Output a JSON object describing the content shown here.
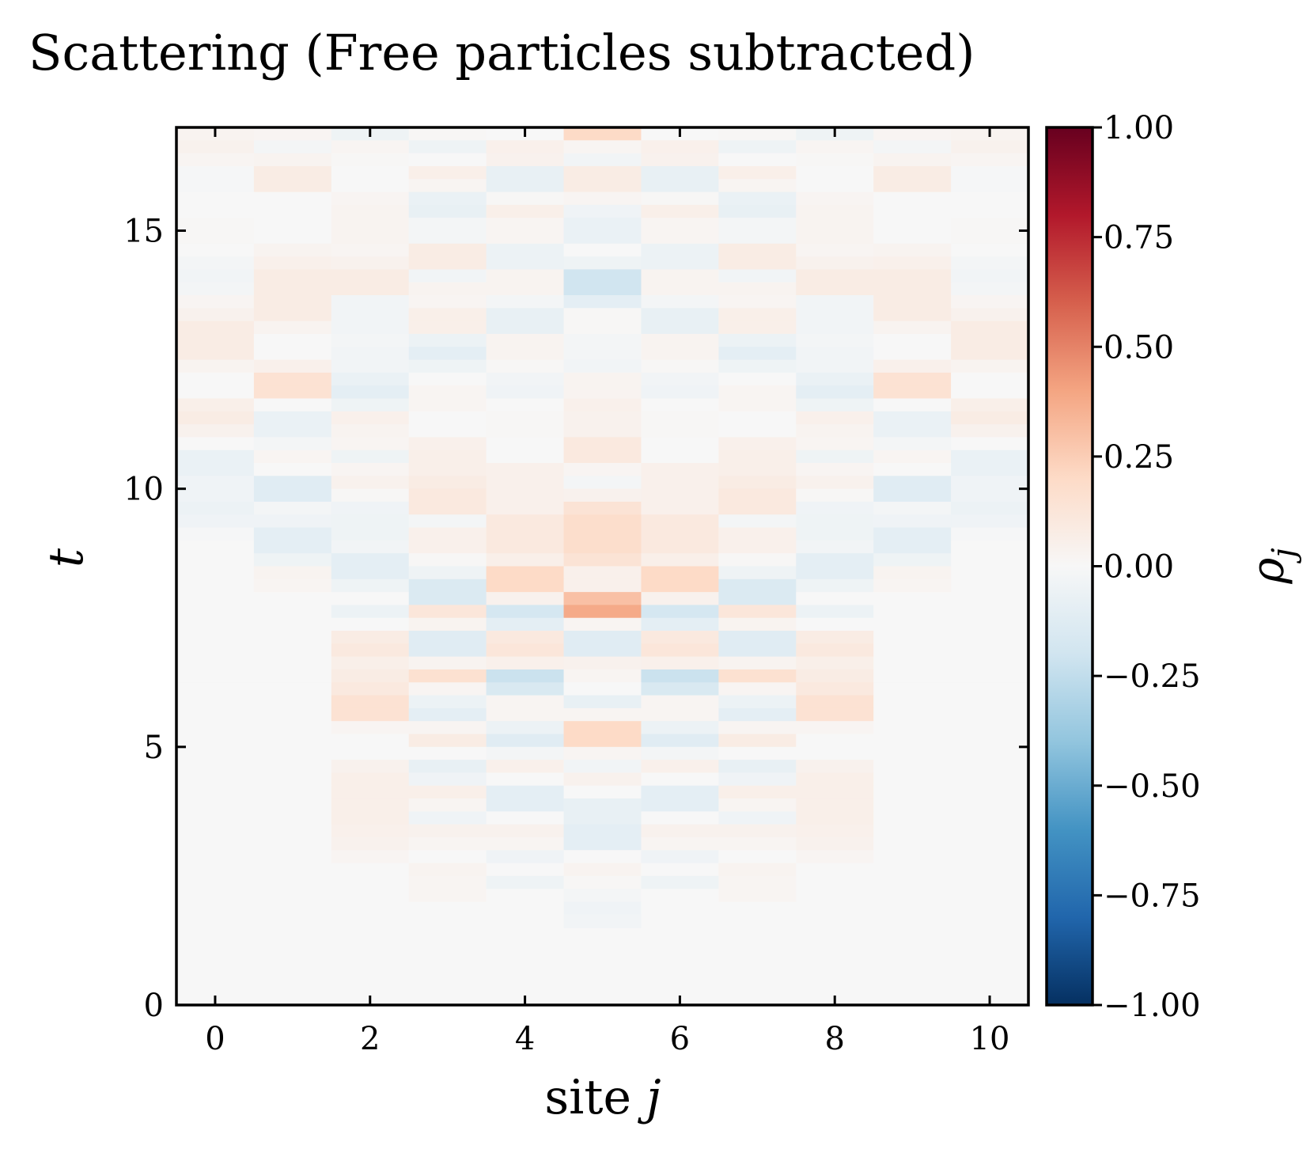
{
  "chart_data": {
    "type": "heatmap",
    "title": "Scattering (Free particles subtracted)",
    "xlabel": "site j",
    "xlabel_parts": {
      "prefix": "site ",
      "var": "j"
    },
    "ylabel": "t",
    "xlim": [
      -0.5,
      10.5
    ],
    "ylim": [
      0,
      17
    ],
    "x_ticks": [
      0,
      2,
      4,
      6,
      8,
      10
    ],
    "x_tick_labels": [
      "0",
      "2",
      "4",
      "6",
      "8",
      "10"
    ],
    "y_ticks": [
      0,
      5,
      10,
      15
    ],
    "y_tick_labels": [
      "0",
      "5",
      "10",
      "15"
    ],
    "colorbar": {
      "label": "ρj",
      "label_parts": {
        "base": "ρ",
        "sub": "j"
      },
      "vmin": -1.0,
      "vmax": 1.0,
      "ticks": [
        1.0,
        0.75,
        0.5,
        0.25,
        0.0,
        -0.25,
        -0.5,
        -0.75,
        -1.0
      ],
      "tick_labels": [
        "1.00",
        "0.75",
        "0.50",
        "0.25",
        "0.00",
        "−0.25",
        "−0.50",
        "−0.75",
        "−1.00"
      ],
      "colormap": "RdBu_r",
      "colors": [
        "#053061",
        "#2166ac",
        "#4393c3",
        "#92c5de",
        "#d1e5f0",
        "#f7f7f7",
        "#fddbc7",
        "#f4a582",
        "#d6604d",
        "#b2182b",
        "#67001f"
      ]
    },
    "sites": [
      0,
      1,
      2,
      3,
      4,
      5,
      6,
      7,
      8,
      9,
      10
    ],
    "t_step": 0.25,
    "bands": [
      {
        "t": [
          16.75,
          17.0
        ],
        "values": [
          0.03,
          0.02,
          -0.05,
          0.01,
          0.0,
          0.2,
          0.0,
          0.01,
          -0.05,
          0.02,
          0.03
        ]
      },
      {
        "t": [
          16.5,
          16.75
        ],
        "values": [
          0.04,
          -0.02,
          0.02,
          -0.05,
          0.05,
          0.02,
          0.05,
          -0.05,
          0.02,
          -0.02,
          0.04
        ]
      },
      {
        "t": [
          16.25,
          16.5
        ],
        "values": [
          0.02,
          0.03,
          0.01,
          0.0,
          0.04,
          -0.03,
          0.04,
          0.0,
          0.01,
          0.03,
          0.02
        ]
      },
      {
        "t": [
          16.0,
          16.25
        ],
        "values": [
          -0.01,
          0.08,
          0.0,
          0.06,
          -0.08,
          0.08,
          -0.08,
          0.06,
          0.0,
          0.08,
          -0.01
        ]
      },
      {
        "t": [
          15.75,
          16.0
        ],
        "values": [
          -0.01,
          0.08,
          0.0,
          0.02,
          -0.08,
          0.08,
          -0.08,
          0.02,
          0.0,
          0.08,
          -0.01
        ]
      },
      {
        "t": [
          15.5,
          15.75
        ],
        "values": [
          0.0,
          0.0,
          0.02,
          -0.07,
          0.01,
          0.02,
          0.01,
          -0.07,
          0.02,
          0.0,
          0.0
        ]
      },
      {
        "t": [
          15.25,
          15.5
        ],
        "values": [
          0.0,
          0.0,
          0.03,
          -0.08,
          0.06,
          -0.04,
          0.06,
          -0.08,
          0.03,
          0.0,
          0.0
        ]
      },
      {
        "t": [
          15.0,
          15.25
        ],
        "values": [
          0.01,
          0.0,
          0.03,
          -0.02,
          0.02,
          -0.07,
          0.02,
          -0.02,
          0.03,
          0.0,
          0.01
        ]
      },
      {
        "t": [
          14.75,
          15.0
        ],
        "values": [
          0.01,
          0.0,
          0.03,
          -0.02,
          0.02,
          -0.07,
          0.02,
          -0.02,
          0.03,
          0.0,
          0.01
        ]
      },
      {
        "t": [
          14.5,
          14.75
        ],
        "values": [
          0.0,
          0.03,
          0.02,
          0.08,
          -0.06,
          0.0,
          -0.06,
          0.08,
          0.02,
          0.03,
          0.0
        ]
      },
      {
        "t": [
          14.25,
          14.5
        ],
        "values": [
          -0.02,
          0.05,
          0.04,
          0.08,
          -0.06,
          -0.05,
          -0.06,
          0.08,
          0.04,
          0.05,
          -0.02
        ]
      },
      {
        "t": [
          14.0,
          14.25
        ],
        "values": [
          -0.03,
          0.08,
          0.08,
          -0.03,
          0.03,
          -0.2,
          0.03,
          -0.03,
          0.08,
          0.08,
          -0.03
        ]
      },
      {
        "t": [
          13.75,
          14.0
        ],
        "values": [
          -0.02,
          0.08,
          0.08,
          0.03,
          0.03,
          -0.2,
          0.03,
          0.03,
          0.08,
          0.08,
          -0.02
        ]
      },
      {
        "t": [
          13.5,
          13.75
        ],
        "values": [
          0.02,
          0.08,
          -0.03,
          0.02,
          -0.02,
          -0.1,
          -0.02,
          0.02,
          -0.03,
          0.08,
          0.02
        ]
      },
      {
        "t": [
          13.25,
          13.5
        ],
        "values": [
          0.04,
          0.08,
          -0.03,
          0.06,
          -0.08,
          0.01,
          -0.08,
          0.06,
          -0.03,
          0.08,
          0.04
        ]
      },
      {
        "t": [
          13.0,
          13.25
        ],
        "values": [
          0.08,
          0.03,
          -0.03,
          0.06,
          -0.08,
          0.01,
          -0.08,
          0.06,
          -0.03,
          0.03,
          0.08
        ]
      },
      {
        "t": [
          12.75,
          13.0
        ],
        "values": [
          0.08,
          0.0,
          -0.02,
          -0.06,
          0.03,
          -0.02,
          0.03,
          -0.06,
          -0.02,
          0.0,
          0.08
        ]
      },
      {
        "t": [
          12.5,
          12.75
        ],
        "values": [
          0.08,
          0.0,
          -0.03,
          -0.1,
          0.03,
          -0.02,
          0.03,
          -0.1,
          -0.03,
          0.0,
          0.08
        ]
      },
      {
        "t": [
          12.25,
          12.5
        ],
        "values": [
          0.03,
          0.05,
          -0.03,
          -0.05,
          0.01,
          -0.03,
          0.01,
          -0.05,
          -0.03,
          0.05,
          0.03
        ]
      },
      {
        "t": [
          12.0,
          12.25
        ],
        "values": [
          0.0,
          0.15,
          -0.07,
          0.0,
          -0.03,
          0.03,
          -0.03,
          0.0,
          -0.07,
          0.15,
          0.0
        ]
      },
      {
        "t": [
          11.75,
          12.0
        ],
        "values": [
          0.0,
          0.15,
          -0.1,
          0.02,
          -0.04,
          0.03,
          -0.04,
          0.02,
          -0.1,
          0.15,
          0.0
        ]
      },
      {
        "t": [
          11.5,
          11.75
        ],
        "values": [
          0.06,
          0.0,
          -0.05,
          0.02,
          0.0,
          0.05,
          0.0,
          0.02,
          -0.05,
          0.0,
          0.06
        ]
      },
      {
        "t": [
          11.25,
          11.5
        ],
        "values": [
          0.08,
          -0.07,
          0.05,
          0.0,
          0.01,
          0.04,
          0.01,
          0.0,
          0.05,
          -0.07,
          0.08
        ]
      },
      {
        "t": [
          11.0,
          11.25
        ],
        "values": [
          0.04,
          -0.07,
          0.03,
          0.0,
          0.01,
          0.04,
          0.01,
          0.0,
          0.03,
          -0.07,
          0.04
        ]
      },
      {
        "t": [
          10.75,
          11.0
        ],
        "values": [
          0.0,
          -0.02,
          0.02,
          0.05,
          0.0,
          0.1,
          0.0,
          0.05,
          0.02,
          -0.02,
          0.0
        ]
      },
      {
        "t": [
          10.5,
          10.75
        ],
        "values": [
          -0.07,
          0.02,
          -0.05,
          0.06,
          0.0,
          0.1,
          0.0,
          0.06,
          -0.05,
          0.02,
          -0.07
        ]
      },
      {
        "t": [
          10.25,
          10.5
        ],
        "values": [
          -0.07,
          0.0,
          0.02,
          0.06,
          0.05,
          0.02,
          0.05,
          0.06,
          0.02,
          0.0,
          -0.07
        ]
      },
      {
        "t": [
          10.0,
          10.25
        ],
        "values": [
          -0.04,
          -0.12,
          0.04,
          0.08,
          0.05,
          -0.02,
          0.05,
          0.08,
          0.04,
          -0.12,
          -0.04
        ]
      },
      {
        "t": [
          9.75,
          10.0
        ],
        "values": [
          -0.04,
          -0.12,
          0.01,
          0.1,
          0.05,
          0.04,
          0.05,
          0.1,
          0.01,
          -0.12,
          -0.04
        ]
      },
      {
        "t": [
          9.5,
          9.75
        ],
        "values": [
          -0.06,
          -0.02,
          -0.04,
          0.1,
          0.05,
          0.14,
          0.05,
          0.1,
          -0.04,
          -0.02,
          -0.06
        ]
      },
      {
        "t": [
          9.25,
          9.5
        ],
        "values": [
          -0.04,
          -0.04,
          -0.05,
          -0.02,
          0.1,
          0.18,
          0.1,
          -0.02,
          -0.05,
          -0.04,
          -0.04
        ]
      },
      {
        "t": [
          9.0,
          9.25
        ],
        "values": [
          -0.01,
          -0.1,
          -0.05,
          0.05,
          0.1,
          0.18,
          0.1,
          0.05,
          -0.05,
          -0.1,
          -0.01
        ]
      },
      {
        "t": [
          8.75,
          9.0
        ],
        "values": [
          0.0,
          -0.1,
          -0.03,
          0.05,
          0.1,
          0.18,
          0.1,
          0.05,
          -0.03,
          -0.1,
          0.0
        ]
      },
      {
        "t": [
          8.5,
          8.75
        ],
        "values": [
          0.0,
          -0.05,
          -0.1,
          0.01,
          0.06,
          0.14,
          0.06,
          0.01,
          -0.1,
          -0.05,
          0.0
        ]
      },
      {
        "t": [
          8.25,
          8.5
        ],
        "values": [
          0.0,
          0.03,
          -0.1,
          -0.05,
          0.2,
          0.05,
          0.2,
          -0.05,
          -0.1,
          0.03,
          0.0
        ]
      },
      {
        "t": [
          8.0,
          8.25
        ],
        "values": [
          0.0,
          0.02,
          -0.05,
          -0.15,
          0.2,
          0.05,
          0.2,
          -0.15,
          -0.05,
          0.02,
          0.0
        ]
      },
      {
        "t": [
          7.75,
          8.0
        ],
        "values": [
          0.0,
          0.0,
          0.0,
          -0.15,
          0.04,
          0.3,
          0.04,
          -0.15,
          0.0,
          0.0,
          0.0
        ]
      },
      {
        "t": [
          7.5,
          7.75
        ],
        "values": [
          0.0,
          0.0,
          -0.06,
          0.12,
          -0.18,
          0.38,
          -0.18,
          0.12,
          -0.06,
          0.0,
          0.0
        ]
      },
      {
        "t": [
          7.25,
          7.5
        ],
        "values": [
          0.0,
          0.0,
          0.0,
          0.03,
          -0.1,
          0.02,
          -0.1,
          0.03,
          0.0,
          0.0,
          0.0
        ]
      },
      {
        "t": [
          7.0,
          7.25
        ],
        "values": [
          0.0,
          0.0,
          0.08,
          -0.12,
          0.1,
          -0.12,
          0.1,
          -0.12,
          0.08,
          0.0,
          0.0
        ]
      },
      {
        "t": [
          6.75,
          7.0
        ],
        "values": [
          0.0,
          0.0,
          0.1,
          -0.12,
          0.12,
          -0.12,
          0.12,
          -0.12,
          0.1,
          0.0,
          0.0
        ]
      },
      {
        "t": [
          6.5,
          6.75
        ],
        "values": [
          0.0,
          0.0,
          0.06,
          0.03,
          0.05,
          0.04,
          0.05,
          0.03,
          0.06,
          0.0,
          0.0
        ]
      },
      {
        "t": [
          6.25,
          6.5
        ],
        "values": [
          0.0,
          0.0,
          0.08,
          0.16,
          -0.22,
          0.02,
          -0.22,
          0.16,
          0.08,
          0.0,
          0.0
        ]
      },
      {
        "t": [
          6.0,
          6.25
        ],
        "values": [
          0.0,
          0.0,
          0.1,
          0.02,
          -0.16,
          0.0,
          -0.16,
          0.02,
          0.1,
          0.0,
          0.0
        ]
      },
      {
        "t": [
          5.75,
          6.0
        ],
        "values": [
          0.0,
          0.0,
          0.15,
          -0.06,
          0.02,
          -0.08,
          0.02,
          -0.06,
          0.15,
          0.0,
          0.0
        ]
      },
      {
        "t": [
          5.5,
          5.75
        ],
        "values": [
          0.0,
          0.0,
          0.15,
          -0.1,
          0.02,
          0.02,
          0.02,
          -0.1,
          0.15,
          0.0,
          0.0
        ]
      },
      {
        "t": [
          5.25,
          5.5
        ],
        "values": [
          0.0,
          0.0,
          0.02,
          0.02,
          -0.06,
          0.2,
          -0.06,
          0.02,
          0.02,
          0.0,
          0.0
        ]
      },
      {
        "t": [
          5.0,
          5.25
        ],
        "values": [
          0.0,
          0.0,
          0.0,
          0.08,
          -0.12,
          0.2,
          -0.12,
          0.08,
          0.0,
          0.0,
          0.0
        ]
      },
      {
        "t": [
          4.75,
          5.0
        ],
        "values": [
          0.0,
          0.0,
          0.0,
          0.0,
          -0.02,
          0.02,
          -0.02,
          0.0,
          0.0,
          0.0,
          0.0
        ]
      },
      {
        "t": [
          4.5,
          4.75
        ],
        "values": [
          0.0,
          0.0,
          0.04,
          -0.08,
          0.05,
          -0.03,
          0.05,
          -0.08,
          0.04,
          0.0,
          0.0
        ]
      },
      {
        "t": [
          4.25,
          4.5
        ],
        "values": [
          0.0,
          0.0,
          0.06,
          -0.04,
          0.0,
          0.04,
          0.0,
          -0.04,
          0.06,
          0.0,
          0.0
        ]
      },
      {
        "t": [
          4.0,
          4.25
        ],
        "values": [
          0.0,
          0.0,
          0.06,
          0.06,
          -0.1,
          0.0,
          -0.1,
          0.06,
          0.06,
          0.0,
          0.0
        ]
      },
      {
        "t": [
          3.75,
          4.0
        ],
        "values": [
          0.0,
          0.0,
          0.06,
          0.02,
          -0.1,
          -0.08,
          -0.1,
          0.02,
          0.06,
          0.0,
          0.0
        ]
      },
      {
        "t": [
          3.5,
          3.75
        ],
        "values": [
          0.0,
          0.0,
          0.06,
          -0.04,
          0.0,
          -0.08,
          0.0,
          -0.04,
          0.06,
          0.0,
          0.0
        ]
      },
      {
        "t": [
          3.25,
          3.5
        ],
        "values": [
          0.0,
          0.0,
          0.05,
          0.04,
          0.04,
          -0.1,
          0.04,
          0.04,
          0.05,
          0.0,
          0.0
        ]
      },
      {
        "t": [
          3.0,
          3.25
        ],
        "values": [
          0.0,
          0.0,
          0.04,
          0.02,
          0.02,
          -0.1,
          0.02,
          0.02,
          0.04,
          0.0,
          0.0
        ]
      },
      {
        "t": [
          2.75,
          3.0
        ],
        "values": [
          0.0,
          0.0,
          0.02,
          0.0,
          -0.04,
          0.0,
          -0.04,
          0.0,
          0.02,
          0.0,
          0.0
        ]
      },
      {
        "t": [
          2.5,
          2.75
        ],
        "values": [
          0.0,
          0.0,
          0.0,
          0.03,
          0.0,
          0.03,
          0.0,
          0.03,
          0.0,
          0.0,
          0.0
        ]
      },
      {
        "t": [
          2.25,
          2.5
        ],
        "values": [
          0.0,
          0.0,
          0.0,
          0.02,
          -0.05,
          0.01,
          -0.05,
          0.02,
          0.0,
          0.0,
          0.0
        ]
      },
      {
        "t": [
          2.0,
          2.25
        ],
        "values": [
          0.0,
          0.0,
          0.0,
          0.02,
          0.0,
          -0.02,
          0.0,
          0.02,
          0.0,
          0.0,
          0.0
        ]
      },
      {
        "t": [
          1.75,
          2.0
        ],
        "values": [
          0.0,
          0.0,
          0.0,
          0.0,
          0.0,
          -0.04,
          0.0,
          0.0,
          0.0,
          0.0,
          0.0
        ]
      },
      {
        "t": [
          1.5,
          1.75
        ],
        "values": [
          0.0,
          0.0,
          0.0,
          0.0,
          0.0,
          -0.03,
          0.0,
          0.0,
          0.0,
          0.0,
          0.0
        ]
      }
    ],
    "background_value": 0.0
  }
}
